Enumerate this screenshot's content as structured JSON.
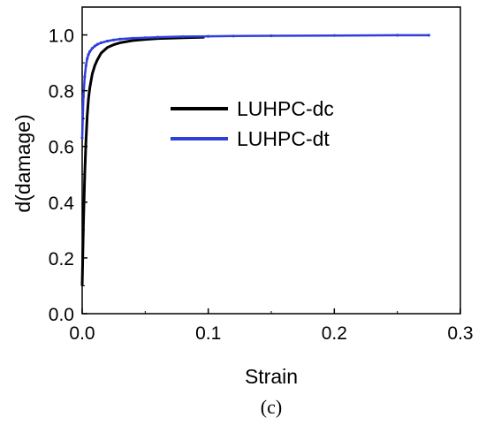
{
  "chart_data": {
    "type": "line",
    "xlabel": "Strain",
    "ylabel": "d(damage)",
    "xlim": [
      0.0,
      0.3
    ],
    "ylim": [
      0.0,
      1.1
    ],
    "x_ticks": [
      "0.0",
      "0.1",
      "0.2",
      "0.3"
    ],
    "y_ticks": [
      "0.0",
      "0.2",
      "0.4",
      "0.6",
      "0.8",
      "1.0"
    ],
    "x_tick_values": [
      0.0,
      0.1,
      0.2,
      0.3
    ],
    "y_tick_values": [
      0.0,
      0.2,
      0.4,
      0.6,
      0.8,
      1.0
    ],
    "grid": false,
    "legend_position": "center",
    "caption": "(c)",
    "series": [
      {
        "name": "LUHPC-dc",
        "color": "#000000",
        "x": [
          0.0,
          0.001,
          0.002,
          0.003,
          0.004,
          0.005,
          0.006,
          0.008,
          0.01,
          0.012,
          0.015,
          0.02,
          0.025,
          0.03,
          0.04,
          0.05,
          0.06,
          0.08,
          0.097
        ],
        "y": [
          0.1,
          0.32,
          0.5,
          0.62,
          0.71,
          0.77,
          0.81,
          0.86,
          0.89,
          0.91,
          0.935,
          0.955,
          0.965,
          0.972,
          0.98,
          0.984,
          0.987,
          0.99,
          0.992
        ]
      },
      {
        "name": "LUHPC-dt",
        "color": "#2f3fd9",
        "x": [
          0.0,
          0.001,
          0.002,
          0.003,
          0.004,
          0.005,
          0.006,
          0.008,
          0.01,
          0.012,
          0.015,
          0.02,
          0.025,
          0.03,
          0.04,
          0.05,
          0.06,
          0.08,
          0.1,
          0.12,
          0.15,
          0.2,
          0.25,
          0.275
        ],
        "y": [
          0.63,
          0.78,
          0.85,
          0.89,
          0.915,
          0.93,
          0.94,
          0.952,
          0.96,
          0.966,
          0.972,
          0.978,
          0.982,
          0.985,
          0.988,
          0.99,
          0.992,
          0.994,
          0.995,
          0.996,
          0.997,
          0.998,
          0.999,
          0.999
        ]
      }
    ]
  }
}
